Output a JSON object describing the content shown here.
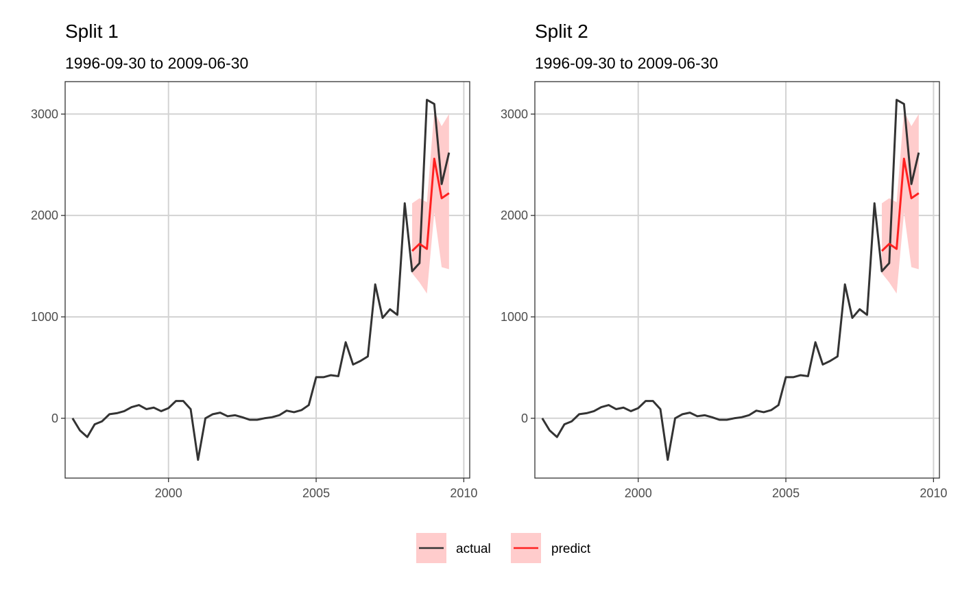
{
  "chart_data": [
    {
      "type": "line",
      "title": "Split 1",
      "subtitle": "1996-09-30 to 2009-06-30",
      "xlabel": "",
      "ylabel": "",
      "xlim": [
        1996.5,
        2010.2
      ],
      "ylim": [
        -590,
        3320
      ],
      "x_ticks": [
        2000,
        2005,
        2010
      ],
      "x_tick_labels": [
        "2000",
        "2005",
        "2010"
      ],
      "y_ticks": [
        0,
        1000,
        2000,
        3000
      ],
      "y_tick_labels": [
        "0",
        "1000",
        "2000",
        "3000"
      ],
      "grid": true,
      "series": [
        {
          "name": "actual",
          "color": "#333333",
          "x": [
            1996.75,
            1997.0,
            1997.25,
            1997.5,
            1997.75,
            1998.0,
            1998.25,
            1998.5,
            1998.75,
            1999.0,
            1999.25,
            1999.5,
            1999.75,
            2000.0,
            2000.25,
            2000.5,
            2000.75,
            2001.0,
            2001.25,
            2001.5,
            2001.75,
            2002.0,
            2002.25,
            2002.5,
            2002.75,
            2003.0,
            2003.25,
            2003.5,
            2003.75,
            2004.0,
            2004.25,
            2004.5,
            2004.75,
            2005.0,
            2005.25,
            2005.5,
            2005.75,
            2006.0,
            2006.25,
            2006.5,
            2006.75,
            2007.0,
            2007.25,
            2007.5,
            2007.75,
            2008.0,
            2008.25,
            2008.5,
            2008.75,
            2009.0,
            2009.25,
            2009.5
          ],
          "values": [
            0,
            -120,
            -185,
            -60,
            -30,
            40,
            50,
            70,
            110,
            130,
            90,
            105,
            70,
            100,
            170,
            170,
            90,
            -410,
            0,
            40,
            55,
            20,
            30,
            10,
            -15,
            -15,
            0,
            10,
            30,
            75,
            60,
            80,
            130,
            405,
            405,
            425,
            415,
            750,
            530,
            565,
            610,
            1320,
            990,
            1075,
            1020,
            2120,
            1450,
            1530,
            3140,
            3100,
            2310,
            2620
          ]
        },
        {
          "name": "predict",
          "color": "#ff2020",
          "x": [
            2008.25,
            2008.5,
            2008.75,
            2009.0,
            2009.25,
            2009.5
          ],
          "values": [
            1650,
            1720,
            1670,
            2560,
            2170,
            2220
          ],
          "lower": [
            1430,
            1340,
            1230,
            2030,
            1490,
            1470
          ],
          "upper": [
            2120,
            2170,
            2130,
            3030,
            2880,
            3000
          ]
        }
      ],
      "legend": "bottom"
    },
    {
      "type": "line",
      "title": "Split 2",
      "subtitle": "1996-09-30 to 2009-06-30",
      "xlabel": "",
      "ylabel": "",
      "xlim": [
        1996.5,
        2010.2
      ],
      "ylim": [
        -590,
        3320
      ],
      "x_ticks": [
        2000,
        2005,
        2010
      ],
      "x_tick_labels": [
        "2000",
        "2005",
        "2010"
      ],
      "y_ticks": [
        0,
        1000,
        2000,
        3000
      ],
      "y_tick_labels": [
        "0",
        "1000",
        "2000",
        "3000"
      ],
      "grid": true,
      "series": [
        {
          "name": "actual",
          "color": "#333333",
          "x": [
            1996.75,
            1997.0,
            1997.25,
            1997.5,
            1997.75,
            1998.0,
            1998.25,
            1998.5,
            1998.75,
            1999.0,
            1999.25,
            1999.5,
            1999.75,
            2000.0,
            2000.25,
            2000.5,
            2000.75,
            2001.0,
            2001.25,
            2001.5,
            2001.75,
            2002.0,
            2002.25,
            2002.5,
            2002.75,
            2003.0,
            2003.25,
            2003.5,
            2003.75,
            2004.0,
            2004.25,
            2004.5,
            2004.75,
            2005.0,
            2005.25,
            2005.5,
            2005.75,
            2006.0,
            2006.25,
            2006.5,
            2006.75,
            2007.0,
            2007.25,
            2007.5,
            2007.75,
            2008.0,
            2008.25,
            2008.5,
            2008.75,
            2009.0,
            2009.25,
            2009.5
          ],
          "values": [
            0,
            -120,
            -185,
            -60,
            -30,
            40,
            50,
            70,
            110,
            130,
            90,
            105,
            70,
            100,
            170,
            170,
            90,
            -410,
            0,
            40,
            55,
            20,
            30,
            10,
            -15,
            -15,
            0,
            10,
            30,
            75,
            60,
            80,
            130,
            405,
            405,
            425,
            415,
            750,
            530,
            565,
            610,
            1320,
            990,
            1075,
            1020,
            2120,
            1450,
            1530,
            3140,
            3100,
            2310,
            2620
          ]
        },
        {
          "name": "predict",
          "color": "#ff2020",
          "x": [
            2008.25,
            2008.5,
            2008.75,
            2009.0,
            2009.25,
            2009.5
          ],
          "values": [
            1650,
            1720,
            1670,
            2560,
            2170,
            2220
          ],
          "lower": [
            1430,
            1340,
            1230,
            2030,
            1490,
            1470
          ],
          "upper": [
            2120,
            2170,
            2130,
            3030,
            2880,
            3000
          ]
        }
      ],
      "legend": "bottom"
    }
  ],
  "legend": {
    "band_color": "#ffcccc",
    "entries": [
      {
        "label": "actual",
        "color": "#333333"
      },
      {
        "label": "predict",
        "color": "#ff2020"
      }
    ]
  }
}
